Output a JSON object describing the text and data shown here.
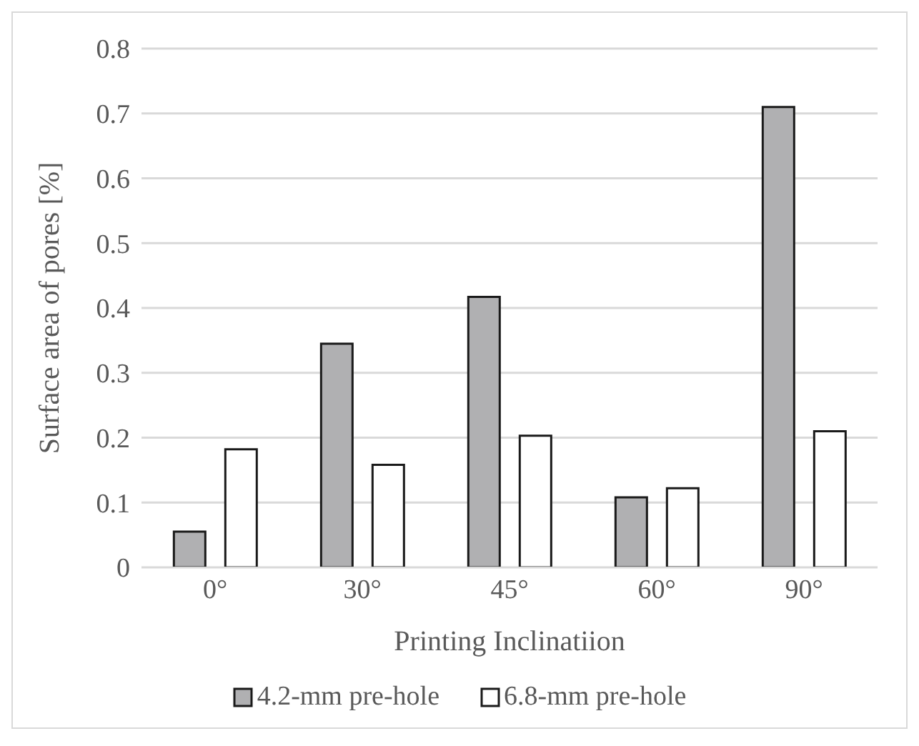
{
  "chart_data": {
    "type": "bar",
    "xlabel": "Printing Inclinatiion",
    "ylabel": "Surface area of pores [%]",
    "categories": [
      "0°",
      "30°",
      "45°",
      "60°",
      "90°"
    ],
    "series": [
      {
        "name": "4.2-mm pre-hole",
        "color": "#b0b0b2",
        "values": [
          0.055,
          0.345,
          0.417,
          0.108,
          0.71
        ]
      },
      {
        "name": "6.8-mm pre-hole",
        "color": "#ffffff",
        "values": [
          0.182,
          0.158,
          0.203,
          0.122,
          0.21
        ]
      }
    ],
    "ylim": [
      0,
      0.8
    ],
    "yticks": [
      0,
      0.1,
      0.2,
      0.3,
      0.4,
      0.5,
      0.6,
      0.7,
      0.8
    ],
    "grid": "y",
    "legend": "bottom"
  }
}
